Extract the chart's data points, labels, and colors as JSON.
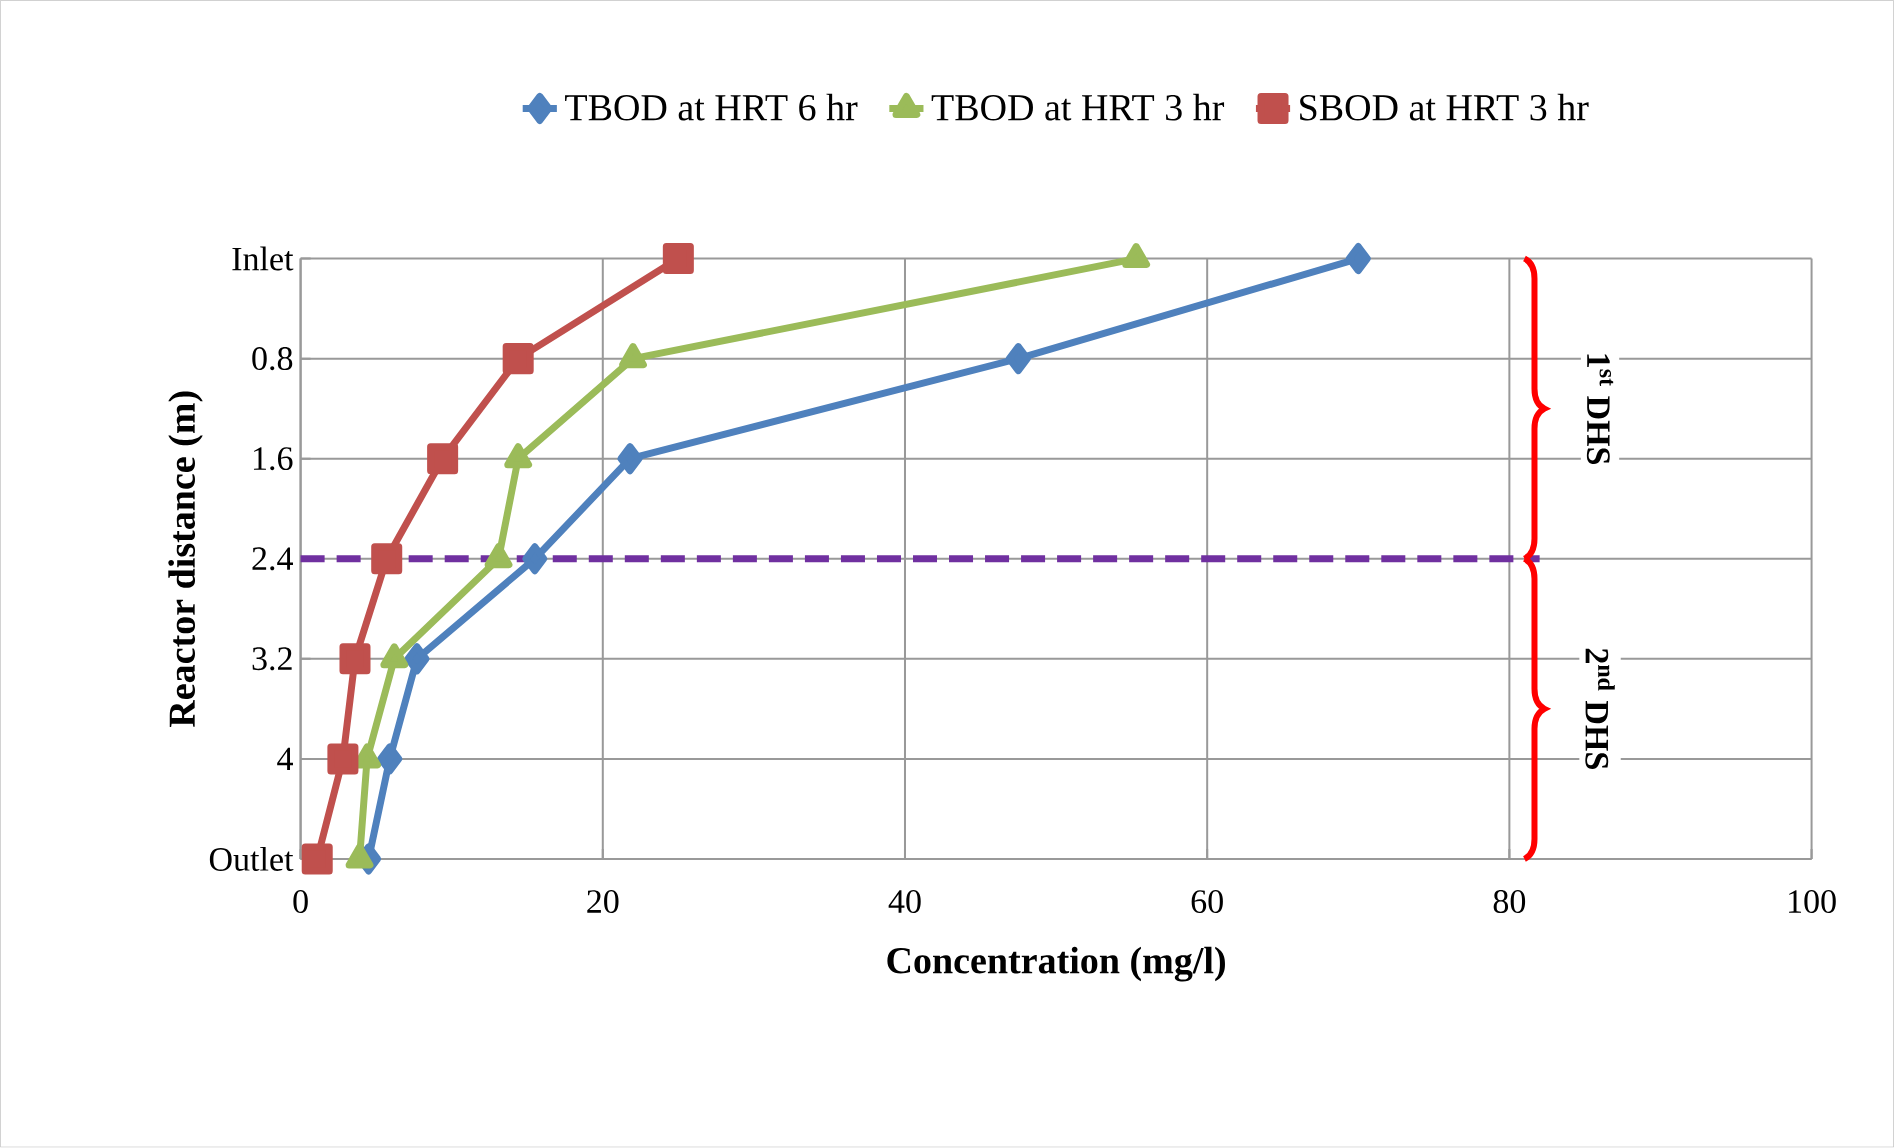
{
  "chart_data": {
    "type": "line",
    "orientation": "horizontal",
    "xlabel": "Concentration (mg/l)",
    "ylabel": "Reactor distance (m)",
    "categories": [
      "Inlet",
      "0.8",
      "1.6",
      "2.4",
      "3.2",
      "4",
      "Outlet"
    ],
    "series": [
      {
        "name": "TBOD at HRT 6 hr",
        "color": "#4f81bd",
        "marker": "diamond",
        "values": [
          70,
          47.5,
          21.8,
          15.5,
          7.7,
          5.9,
          4.5
        ]
      },
      {
        "name": "TBOD at HRT 3 hr",
        "color": "#9bbb59",
        "marker": "triangle",
        "values": [
          55.3,
          22,
          14.4,
          13.1,
          6.2,
          4.4,
          3.9
        ]
      },
      {
        "name": "SBOD at HRT 3 hr",
        "color": "#c0504d",
        "marker": "square",
        "values": [
          25,
          14.4,
          9.4,
          5.7,
          3.6,
          2.8,
          1.1
        ]
      }
    ],
    "xlim": [
      0,
      100
    ],
    "xticks": [
      0,
      20,
      40,
      60,
      80,
      100
    ],
    "grid": true,
    "legend": "top",
    "ref_lines": [
      {
        "axis": "y",
        "value": "2.4",
        "color": "#7030a0",
        "line_style": "dashed"
      }
    ],
    "annotations": [
      "1$^{st}$ DHS",
      "2$^{nd}$ DHS"
    ]
  }
}
